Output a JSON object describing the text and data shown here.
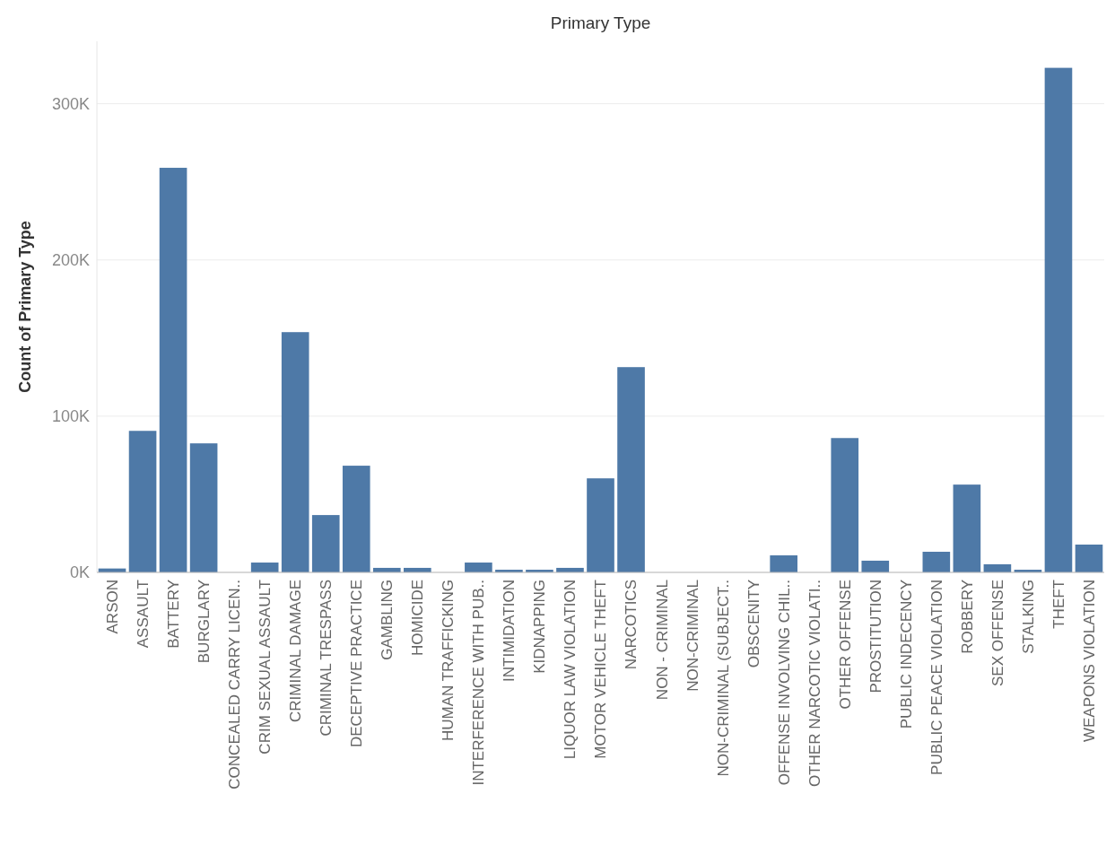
{
  "chart_data": {
    "type": "bar",
    "title": "Primary Type",
    "ylabel": "Count of Primary Type",
    "categories": [
      "ARSON",
      "ASSAULT",
      "BATTERY",
      "BURGLARY",
      "CONCEALED CARRY LICEN..",
      "CRIM SEXUAL ASSAULT",
      "CRIMINAL DAMAGE",
      "CRIMINAL TRESPASS",
      "DECEPTIVE PRACTICE",
      "GAMBLING",
      "HOMICIDE",
      "HUMAN TRAFFICKING",
      "INTERFERENCE WITH PUB..",
      "INTIMIDATION",
      "KIDNAPPING",
      "LIQUOR LAW VIOLATION",
      "MOTOR VEHICLE THEFT",
      "NARCOTICS",
      "NON - CRIMINAL",
      "NON-CRIMINAL",
      "NON-CRIMINAL (SUBJECT..",
      "OBSCENITY",
      "OFFENSE INVOLVING CHIL..",
      "OTHER NARCOTIC VIOLATI..",
      "OTHER OFFENSE",
      "PROSTITUTION",
      "PUBLIC INDECENCY",
      "PUBLIC PEACE VIOLATION",
      "ROBBERY",
      "SEX OFFENSE",
      "STALKING",
      "THEFT",
      "WEAPONS VIOLATION"
    ],
    "values": [
      2500,
      90600,
      259000,
      82600,
      0,
      6300,
      153800,
      36700,
      68300,
      2900,
      2900,
      0,
      6300,
      1700,
      1700,
      2900,
      60200,
      131400,
      0,
      0,
      0,
      0,
      10900,
      0,
      86000,
      7500,
      0,
      13200,
      56200,
      5200,
      1700,
      323000,
      17800
    ],
    "color": "#4e79a7",
    "ylim": [
      0,
      340000
    ],
    "yticks": [
      {
        "value": 0,
        "label": "0K"
      },
      {
        "value": 100000,
        "label": "100K"
      },
      {
        "value": 200000,
        "label": "200K"
      },
      {
        "value": 300000,
        "label": "300K"
      }
    ],
    "grid": "y"
  }
}
